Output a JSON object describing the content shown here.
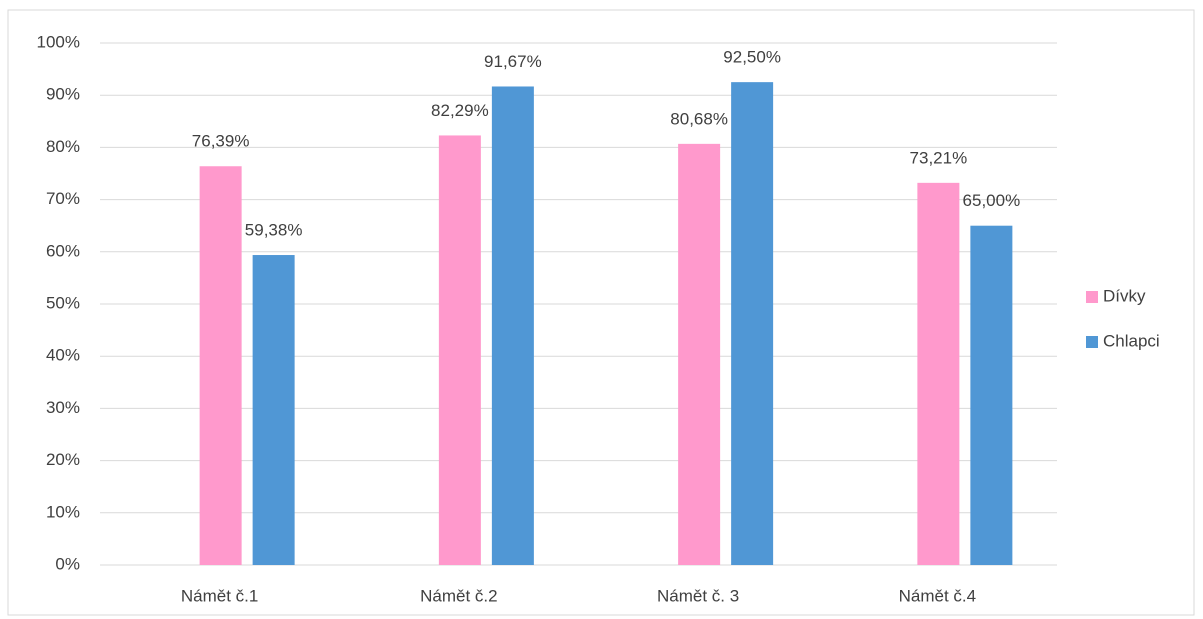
{
  "chart_data": {
    "type": "bar",
    "categories": [
      "Námět č.1",
      "Námět č.2",
      "Námět č. 3",
      "Námět č.4"
    ],
    "series": [
      {
        "name": "Dívky",
        "color": "#ff99cc",
        "values": [
          76.39,
          82.29,
          80.68,
          73.21
        ],
        "value_labels": [
          "76,39%",
          "82,29%",
          "80,68%",
          "73,21%"
        ]
      },
      {
        "name": "Chlapci",
        "color": "#5097d5",
        "values": [
          59.38,
          91.67,
          92.5,
          65.0
        ],
        "value_labels": [
          "59,38%",
          "91,67%",
          "92,50%",
          "65,00%"
        ]
      }
    ],
    "ylim": [
      0,
      100
    ],
    "yticks": [
      {
        "value": 0,
        "label": "0%"
      },
      {
        "value": 10,
        "label": "10%"
      },
      {
        "value": 20,
        "label": "20%"
      },
      {
        "value": 30,
        "label": "30%"
      },
      {
        "value": 40,
        "label": "40%"
      },
      {
        "value": 50,
        "label": "50%"
      },
      {
        "value": 60,
        "label": "60%"
      },
      {
        "value": 70,
        "label": "70%"
      },
      {
        "value": 80,
        "label": "80%"
      },
      {
        "value": 90,
        "label": "90%"
      },
      {
        "value": 100,
        "label": "100%"
      }
    ],
    "grid": true,
    "legend": "right"
  }
}
